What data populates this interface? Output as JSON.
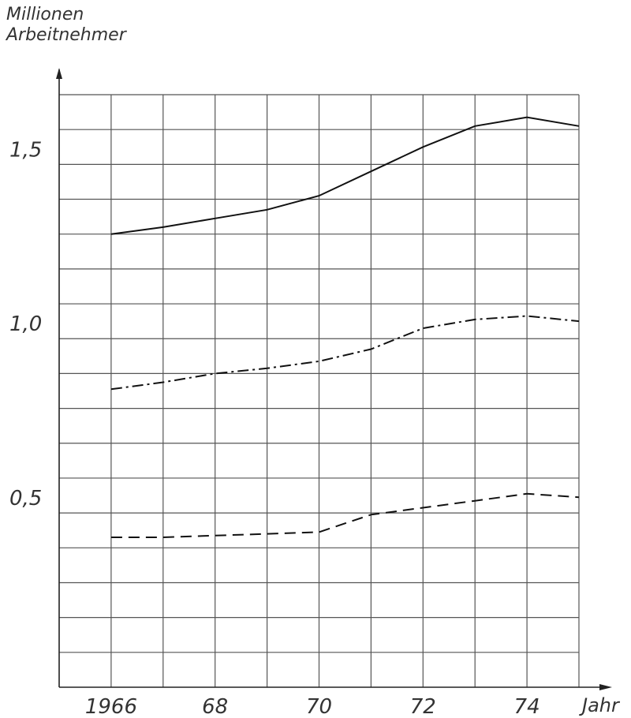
{
  "chart_data": {
    "type": "line",
    "ylabel": [
      "Millionen",
      "Arbeitnehmer"
    ],
    "xlabel": "Jahr",
    "x": [
      1966,
      1967,
      1968,
      1969,
      1970,
      1971,
      1972,
      1973,
      1974,
      1975
    ],
    "xticks": [
      {
        "value": 1966,
        "label": "1966"
      },
      {
        "value": 1968,
        "label": "68"
      },
      {
        "value": 1970,
        "label": "70"
      },
      {
        "value": 1972,
        "label": "72"
      },
      {
        "value": 1974,
        "label": "74"
      }
    ],
    "yticks": [
      {
        "value": 0.5,
        "label": "0,5"
      },
      {
        "value": 1.0,
        "label": "1,0"
      },
      {
        "value": 1.5,
        "label": "1,5"
      }
    ],
    "xlim": [
      1965,
      1975
    ],
    "ylim": [
      0,
      1.7
    ],
    "grid": true,
    "series": [
      {
        "style": "solid",
        "values": [
          1.3,
          1.32,
          1.345,
          1.37,
          1.41,
          1.48,
          1.55,
          1.61,
          1.635,
          1.61
        ]
      },
      {
        "style": "dashdot",
        "values": [
          0.855,
          0.875,
          0.9,
          0.915,
          0.935,
          0.97,
          1.03,
          1.055,
          1.065,
          1.05
        ]
      },
      {
        "style": "dashed",
        "values": [
          0.43,
          0.43,
          0.435,
          0.44,
          0.445,
          0.495,
          0.515,
          0.535,
          0.555,
          0.545
        ]
      }
    ]
  }
}
